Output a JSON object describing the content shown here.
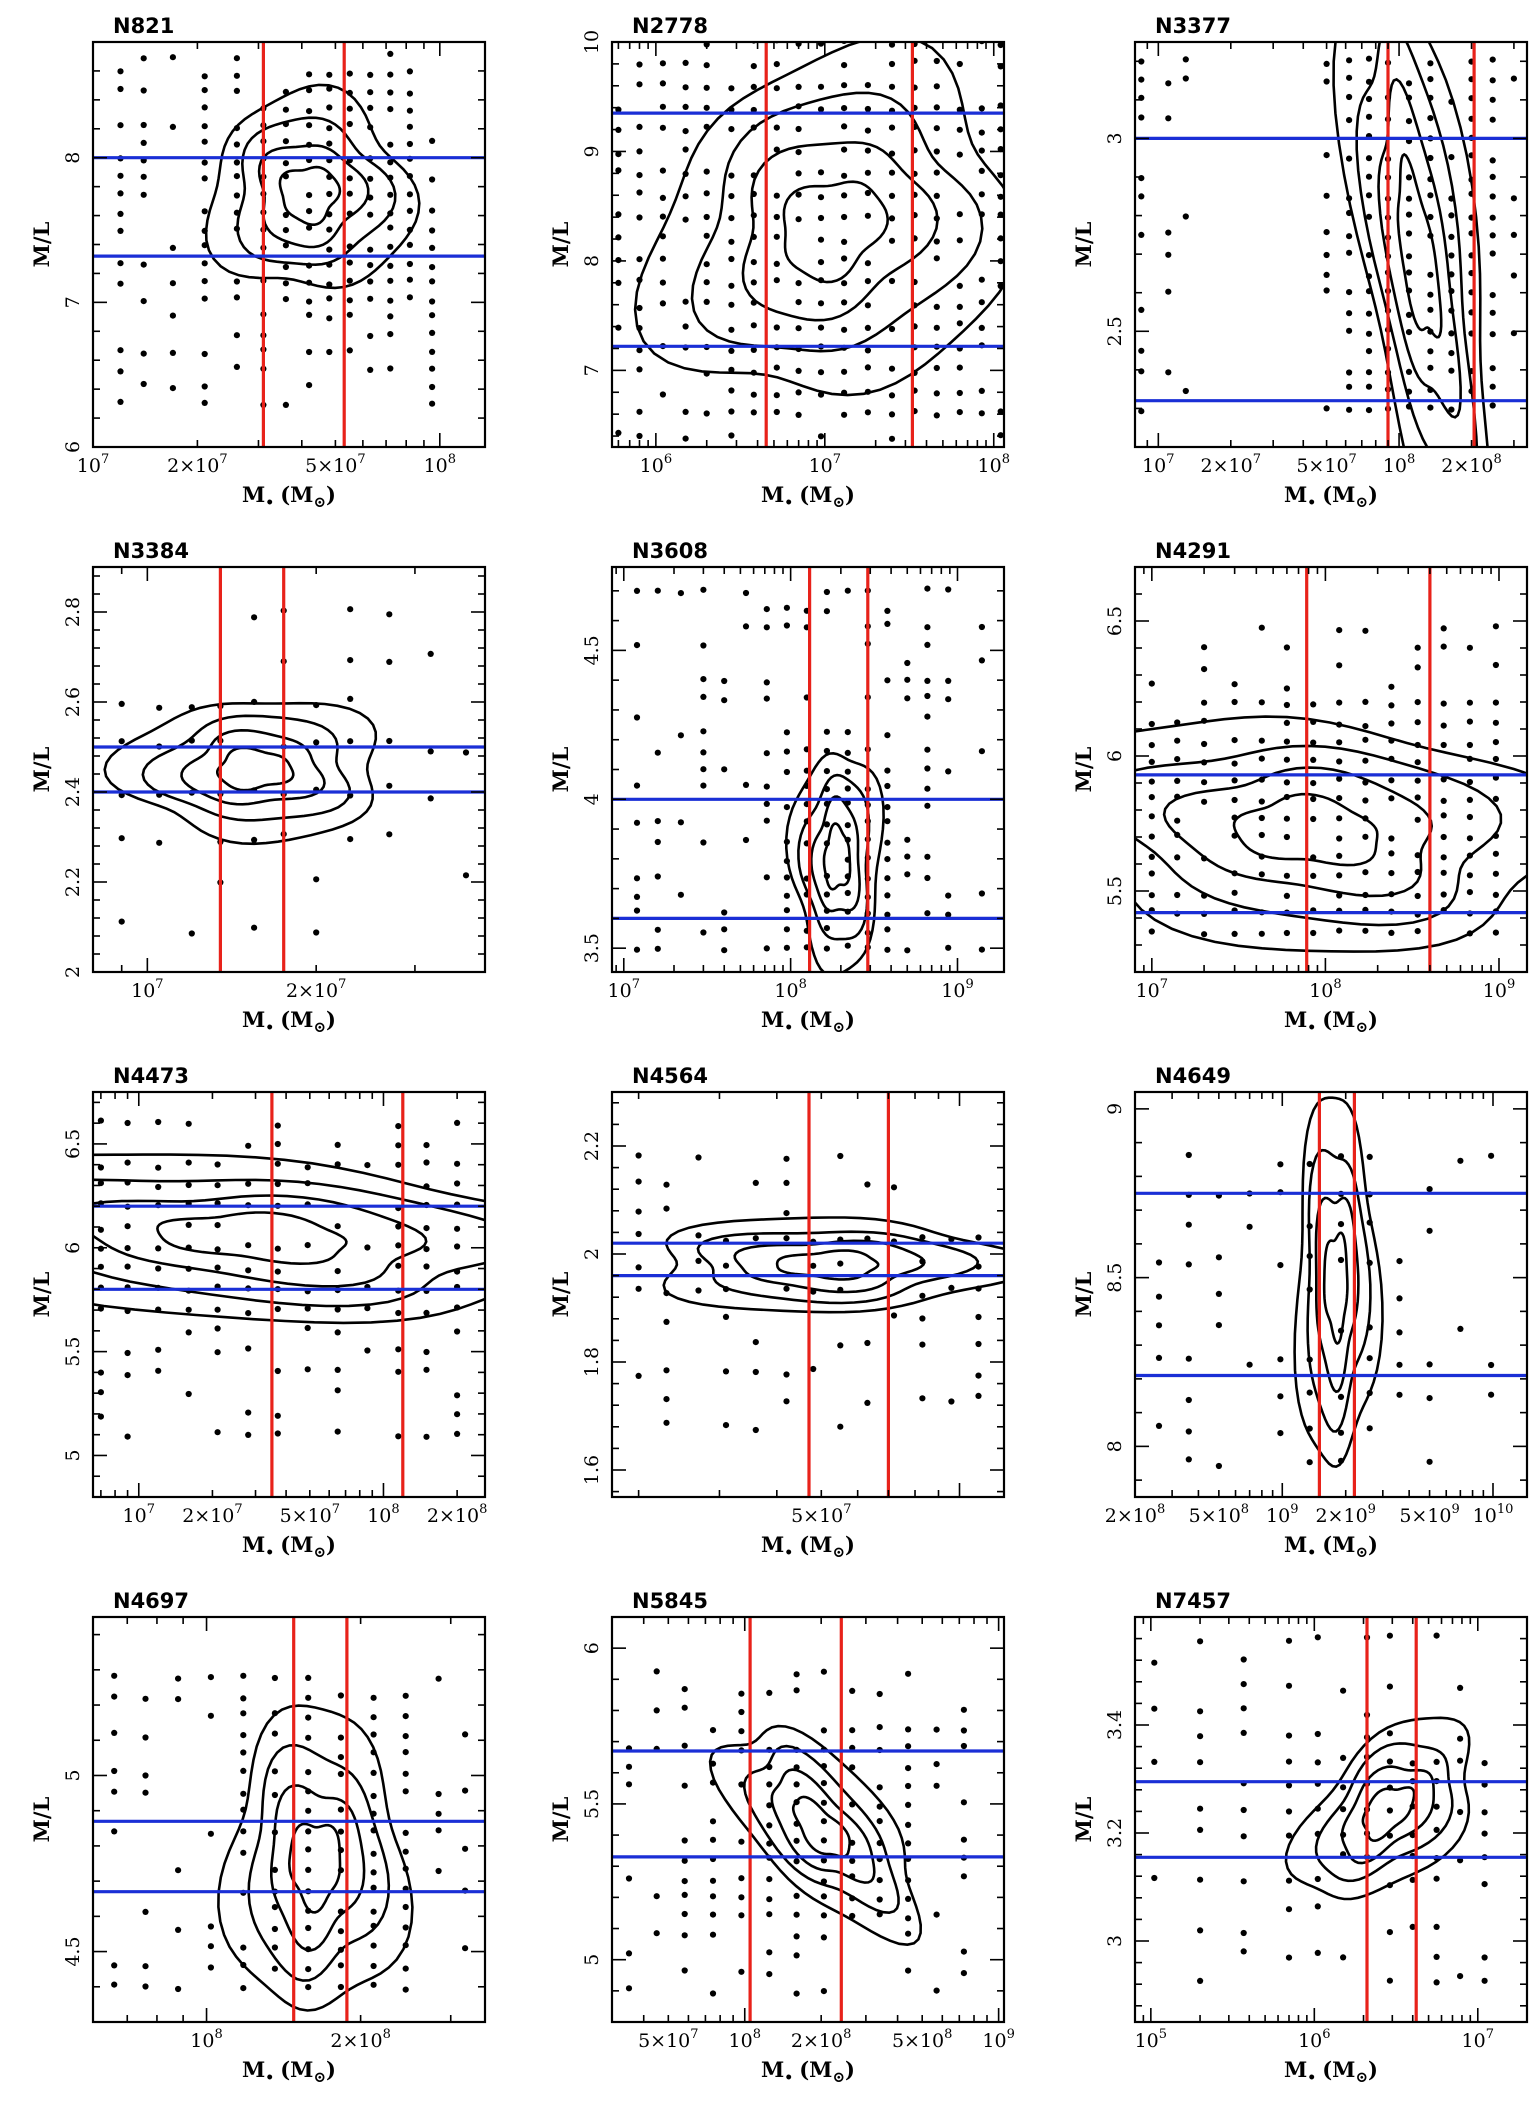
{
  "figure": {
    "ylabel": "M/L",
    "xlabel_main": "M",
    "xlabel_sub": "•",
    "xlabel_unit_open": "(M",
    "xlabel_unit_sun": "⊙",
    "xlabel_unit_close": ")"
  },
  "colors": {
    "vline": "#e8221a",
    "hline": "#1a2fd6",
    "contour": "#000000",
    "dots": "#000000"
  },
  "chart_data": [
    {
      "name": "N821",
      "type": "scatter",
      "xscale": "log",
      "xlim": [
        10000000.0,
        135000000.0
      ],
      "ylim": [
        6.0,
        8.8
      ],
      "xticks": [
        {
          "v": 10000000.0,
          "m": "10",
          "e": "7"
        },
        {
          "v": 20000000.0,
          "m": "2×10",
          "e": "7"
        },
        {
          "v": 50000000.0,
          "m": "5×10",
          "e": "7"
        },
        {
          "v": 100000000.0,
          "m": "10",
          "e": "8"
        }
      ],
      "yticks": [
        {
          "v": 6,
          "t": "6"
        },
        {
          "v": 7,
          "t": "7"
        },
        {
          "v": 8,
          "t": "8"
        }
      ],
      "vlines": [
        31000000.0,
        53000000.0
      ],
      "hlines": [
        8.0,
        7.32
      ],
      "center": [
        42000000.0,
        7.75
      ],
      "sx": 0.15,
      "sy": 0.35,
      "tilt": 0,
      "grid": {
        "xs": [
          12000000.0,
          14000000.0,
          17000000.0,
          21000000.0,
          26000000.0,
          31000000.0,
          36000000.0,
          42000000.0,
          48000000.0,
          55000000.0,
          63000000.0,
          72000000.0,
          82000000.0,
          95000000.0
        ],
        "ymin": 6.3,
        "ymax": 8.8,
        "dy": 0.12
      }
    },
    {
      "name": "N2778",
      "type": "scatter",
      "xscale": "log",
      "xlim": [
        550000.0,
        115000000.0
      ],
      "ylim": [
        6.3,
        10.0
      ],
      "xticks": [
        {
          "v": 1000000.0,
          "m": "10",
          "e": "6"
        },
        {
          "v": 10000000.0,
          "m": "10",
          "e": "7"
        },
        {
          "v": 100000000.0,
          "m": "10",
          "e": "8"
        }
      ],
      "yticks": [
        {
          "v": 7,
          "t": "7"
        },
        {
          "v": 8,
          "t": "8"
        },
        {
          "v": 9,
          "t": "9"
        },
        {
          "v": 10,
          "t": "10"
        }
      ],
      "vlines": [
        4500000.0,
        33000000.0
      ],
      "hlines": [
        9.35,
        7.22
      ],
      "center": [
        11000000.0,
        8.3
      ],
      "sx": 0.55,
      "sy": 0.8,
      "tilt": 0.25,
      "grid": {
        "xs": [
          600000.0,
          800000.0,
          1100000.0,
          1500000.0,
          2000000.0,
          2800000.0,
          3800000.0,
          5200000.0,
          7000000.0,
          9500000.0,
          13000000.0,
          18000000.0,
          25000000.0,
          34000000.0,
          46000000.0,
          63000000.0,
          85000000.0,
          110000000.0
        ],
        "ymin": 6.4,
        "ymax": 10.0,
        "dy": 0.2
      }
    },
    {
      "name": "N3377",
      "type": "scatter",
      "xscale": "log",
      "xlim": [
        8000000.0,
        340000000.0
      ],
      "ylim": [
        2.2,
        3.25
      ],
      "xticks": [
        {
          "v": 10000000.0,
          "m": "10",
          "e": "7"
        },
        {
          "v": 20000000.0,
          "m": "2×10",
          "e": "7"
        },
        {
          "v": 50000000.0,
          "m": "5×10",
          "e": "7"
        },
        {
          "v": 100000000.0,
          "m": "10",
          "e": "8"
        },
        {
          "v": 200000000.0,
          "m": "2×10",
          "e": "8"
        }
      ],
      "yticks": [
        {
          "v": 2.5,
          "t": "2.5"
        },
        {
          "v": 3,
          "t": "3"
        }
      ],
      "vlines": [
        90000000.0,
        205000000.0
      ],
      "hlines": [
        3.0,
        2.32
      ],
      "center": [
        120000000.0,
        2.7
      ],
      "sx": 0.16,
      "sy": 0.32,
      "tilt": -1.6,
      "grid": {
        "xs": [
          8500000.0,
          11000000.0,
          13000000.0,
          50000000.0,
          62000000.0,
          75000000.0,
          90000000.0,
          110000000.0,
          135000000.0,
          165000000.0,
          200000000.0,
          245000000.0,
          300000000.0
        ],
        "ymin": 2.3,
        "ymax": 3.2,
        "dy": 0.05
      }
    },
    {
      "name": "N3384",
      "type": "scatter",
      "xscale": "log",
      "xlim": [
        8000000.0,
        40000000.0
      ],
      "ylim": [
        2.0,
        2.9
      ],
      "xticks": [
        {
          "v": 10000000.0,
          "m": "10",
          "e": "7"
        },
        {
          "v": 20000000.0,
          "m": "2×10",
          "e": "7"
        }
      ],
      "yticks": [
        {
          "v": 2,
          "t": "2"
        },
        {
          "v": 2.2,
          "t": "2.2"
        },
        {
          "v": 2.4,
          "t": "2.4"
        },
        {
          "v": 2.6,
          "t": "2.6"
        },
        {
          "v": 2.8,
          "t": "2.8"
        }
      ],
      "vlines": [
        13500000.0,
        17500000.0
      ],
      "hlines": [
        2.5,
        2.4
      ],
      "center": [
        15500000.0,
        2.45
      ],
      "sx": 0.12,
      "sy": 0.08,
      "tilt": 0,
      "grid": {
        "xs": [
          9000000.0,
          10500000.0,
          12000000.0,
          13500000.0,
          15500000.0,
          17500000.0,
          20000000.0,
          23000000.0,
          27000000.0,
          32000000.0,
          37000000.0
        ],
        "ymin": 2.1,
        "ymax": 2.8,
        "dy": 0.1
      }
    },
    {
      "name": "N3608",
      "type": "scatter",
      "xscale": "log",
      "xlim": [
        8500000.0,
        1900000000.0
      ],
      "ylim": [
        3.42,
        4.78
      ],
      "xticks": [
        {
          "v": 10000000.0,
          "m": "10",
          "e": "7"
        },
        {
          "v": 100000000.0,
          "m": "10",
          "e": "8"
        },
        {
          "v": 1000000000.0,
          "m": "10",
          "e": "9"
        }
      ],
      "yticks": [
        {
          "v": 3.5,
          "t": "3.5"
        },
        {
          "v": 4,
          "t": "4"
        },
        {
          "v": 4.5,
          "t": "4.5"
        }
      ],
      "vlines": [
        130000000.0,
        290000000.0
      ],
      "hlines": [
        4.0,
        3.6
      ],
      "center": [
        190000000.0,
        3.8
      ],
      "sx": 0.14,
      "sy": 0.19,
      "tilt": 0,
      "grid": {
        "xs": [
          12000000.0,
          16000000.0,
          22000000.0,
          30000000.0,
          40000000.0,
          54000000.0,
          72000000.0,
          95000000.0,
          125000000.0,
          165000000.0,
          220000000.0,
          290000000.0,
          380000000.0,
          500000000.0,
          660000000.0,
          880000000.0,
          1400000000.0
        ],
        "ymin": 3.5,
        "ymax": 4.7,
        "dy": 0.06
      }
    },
    {
      "name": "N4291",
      "type": "scatter",
      "xscale": "log",
      "xlim": [
        8000000.0,
        1450000000.0
      ],
      "ylim": [
        5.2,
        6.7
      ],
      "xticks": [
        {
          "v": 10000000.0,
          "m": "10",
          "e": "7"
        },
        {
          "v": 100000000.0,
          "m": "10",
          "e": "8"
        },
        {
          "v": 1000000000.0,
          "m": "10",
          "e": "9"
        }
      ],
      "yticks": [
        {
          "v": 5.5,
          "t": "5.5"
        },
        {
          "v": 6,
          "t": "6"
        },
        {
          "v": 6.5,
          "t": "6.5"
        }
      ],
      "vlines": [
        78000000.0,
        400000000.0
      ],
      "hlines": [
        5.93,
        5.42
      ],
      "center": [
        80000000.0,
        5.72
      ],
      "sx": 0.75,
      "sy": 0.22,
      "tilt": -0.05,
      "grid": {
        "xs": [
          10000000.0,
          14000000.0,
          20000000.0,
          30000000.0,
          43000000.0,
          60000000.0,
          85000000.0,
          120000000.0,
          170000000.0,
          240000000.0,
          340000000.0,
          480000000.0,
          680000000.0,
          960000000.0
        ],
        "ymin": 5.35,
        "ymax": 6.5,
        "dy": 0.07
      }
    },
    {
      "name": "N4473",
      "type": "scatter",
      "xscale": "log",
      "xlim": [
        6500000.0,
        260000000.0
      ],
      "ylim": [
        4.8,
        6.75
      ],
      "xticks": [
        {
          "v": 10000000.0,
          "m": "10",
          "e": "7"
        },
        {
          "v": 20000000.0,
          "m": "2×10",
          "e": "7"
        },
        {
          "v": 50000000.0,
          "m": "5×10",
          "e": "7"
        },
        {
          "v": 100000000.0,
          "m": "10",
          "e": "8"
        },
        {
          "v": 200000000.0,
          "m": "2×10",
          "e": "8"
        }
      ],
      "yticks": [
        {
          "v": 5,
          "t": "5"
        },
        {
          "v": 5.5,
          "t": "5.5"
        },
        {
          "v": 6,
          "t": "6"
        },
        {
          "v": 6.5,
          "t": "6.5"
        }
      ],
      "vlines": [
        35000000.0,
        120000000.0
      ],
      "hlines": [
        6.2,
        5.8
      ],
      "center": [
        30000000.0,
        6.05
      ],
      "sx": 0.7,
      "sy": 0.2,
      "tilt": -0.08,
      "grid": {
        "xs": [
          7000000.0,
          9000000.0,
          12000000.0,
          16000000.0,
          21000000.0,
          28000000.0,
          37000000.0,
          49000000.0,
          65000000.0,
          86000000.0,
          115000000.0,
          150000000.0,
          200000000.0
        ],
        "ymin": 5.1,
        "ymax": 6.65,
        "dy": 0.1
      }
    },
    {
      "name": "N4564",
      "type": "scatter",
      "xscale": "log",
      "xlim": [
        17500000.0,
        125000000.0
      ],
      "ylim": [
        1.55,
        2.3
      ],
      "xticks": [
        {
          "v": 50000000.0,
          "m": "5×10",
          "e": "7"
        }
      ],
      "yticks": [
        {
          "v": 1.6,
          "t": "1.6"
        },
        {
          "v": 1.8,
          "t": "1.8"
        },
        {
          "v": 2,
          "t": "2"
        },
        {
          "v": 2.2,
          "t": "2.2"
        }
      ],
      "vlines": [
        47000000.0,
        70000000.0
      ],
      "hlines": [
        2.02,
        1.96
      ],
      "center": [
        52000000.0,
        1.98
      ],
      "sx": 0.2,
      "sy": 0.045,
      "tilt": 0,
      "grid": {
        "xs": [
          20000000.0,
          23000000.0,
          27000000.0,
          31000000.0,
          36000000.0,
          42000000.0,
          48000000.0,
          55000000.0,
          63000000.0,
          72000000.0,
          83000000.0,
          96000000.0,
          110000000.0
        ],
        "ymin": 1.68,
        "ymax": 2.2,
        "dy": 0.05
      }
    },
    {
      "name": "N4649",
      "type": "scatter",
      "xscale": "log",
      "xlim": [
        200000000.0,
        14500000000.0
      ],
      "ylim": [
        7.85,
        9.05
      ],
      "xticks": [
        {
          "v": 200000000.0,
          "m": "2×10",
          "e": "8"
        },
        {
          "v": 500000000.0,
          "m": "5×10",
          "e": "8"
        },
        {
          "v": 1000000000.0,
          "m": "10",
          "e": "9"
        },
        {
          "v": 2000000000.0,
          "m": "2×10",
          "e": "9"
        },
        {
          "v": 5000000000.0,
          "m": "5×10",
          "e": "9"
        },
        {
          "v": 10000000000.0,
          "m": "10",
          "e": "10"
        }
      ],
      "yticks": [
        {
          "v": 8,
          "t": "8"
        },
        {
          "v": 8.5,
          "t": "8.5"
        },
        {
          "v": 9,
          "t": "9"
        }
      ],
      "vlines": [
        1500000000.0,
        2200000000.0
      ],
      "hlines": [
        8.75,
        8.21
      ],
      "center": [
        1800000000.0,
        8.48
      ],
      "sx": 0.1,
      "sy": 0.28,
      "tilt": 0,
      "grid": {
        "xs": [
          260000000.0,
          360000000.0,
          500000000.0,
          700000000.0,
          980000000.0,
          1350000000.0,
          1900000000.0,
          2600000000.0,
          3600000000.0,
          5000000000.0,
          7000000000.0,
          9800000000.0
        ],
        "ymin": 7.95,
        "ymax": 8.88,
        "dy": 0.1
      }
    },
    {
      "name": "N4697",
      "type": "scatter",
      "xscale": "log",
      "xlim": [
        60000000.0,
        350000000.0
      ],
      "ylim": [
        4.3,
        5.45
      ],
      "xticks": [
        {
          "v": 100000000.0,
          "m": "10",
          "e": "8"
        },
        {
          "v": 200000000.0,
          "m": "2×10",
          "e": "8"
        }
      ],
      "yticks": [
        {
          "v": 4.5,
          "t": "4.5"
        },
        {
          "v": 5,
          "t": "5"
        }
      ],
      "vlines": [
        148000000.0,
        188000000.0
      ],
      "hlines": [
        4.87,
        4.67
      ],
      "center": [
        163000000.0,
        4.75
      ],
      "sx": 0.09,
      "sy": 0.22,
      "tilt": 0,
      "grid": {
        "xs": [
          66000000.0,
          76000000.0,
          88000000.0,
          102000000.0,
          118000000.0,
          136000000.0,
          158000000.0,
          183000000.0,
          212000000.0,
          245000000.0,
          284000000.0,
          320000000.0
        ],
        "ymin": 4.4,
        "ymax": 5.3,
        "dy": 0.055
      }
    },
    {
      "name": "N5845",
      "type": "scatter",
      "xscale": "log",
      "xlim": [
        30000000.0,
        1050000000.0
      ],
      "ylim": [
        4.8,
        6.1
      ],
      "xticks": [
        {
          "v": 50000000.0,
          "m": "5×10",
          "e": "7"
        },
        {
          "v": 100000000.0,
          "m": "10",
          "e": "8"
        },
        {
          "v": 200000000.0,
          "m": "2×10",
          "e": "8"
        },
        {
          "v": 500000000.0,
          "m": "5×10",
          "e": "8"
        },
        {
          "v": 1000000000.0,
          "m": "10",
          "e": "9"
        }
      ],
      "yticks": [
        {
          "v": 5,
          "t": "5"
        },
        {
          "v": 5.5,
          "t": "5.5"
        },
        {
          "v": 6,
          "t": "6"
        }
      ],
      "vlines": [
        105000000.0,
        240000000.0
      ],
      "hlines": [
        5.67,
        5.33
      ],
      "center": [
        200000000.0,
        5.42
      ],
      "sx": 0.2,
      "sy": 0.13,
      "tilt": -0.55,
      "grid": {
        "xs": [
          35000000.0,
          45000000.0,
          58000000.0,
          75000000.0,
          97000000.0,
          125000000.0,
          160000000.0,
          205000000.0,
          265000000.0,
          340000000.0,
          440000000.0,
          570000000.0,
          730000000.0
        ],
        "ymin": 4.9,
        "ymax": 5.95,
        "dy": 0.06
      }
    },
    {
      "name": "N7457",
      "type": "scatter",
      "xscale": "log",
      "xlim": [
        80000.0,
        20000000.0
      ],
      "ylim": [
        2.85,
        3.6
      ],
      "xticks": [
        {
          "v": 100000.0,
          "m": "10",
          "e": "5"
        },
        {
          "v": 1000000.0,
          "m": "10",
          "e": "6"
        },
        {
          "v": 10000000.0,
          "m": "10",
          "e": "7"
        }
      ],
      "yticks": [
        {
          "v": 3,
          "t": "3"
        },
        {
          "v": 3.2,
          "t": "3.2"
        },
        {
          "v": 3.4,
          "t": "3.4"
        }
      ],
      "vlines": [
        2100000.0,
        4200000.0
      ],
      "hlines": [
        3.295,
        3.155
      ],
      "center": [
        2800000.0,
        3.24
      ],
      "sx": 0.28,
      "sy": 0.075,
      "tilt": 0.15,
      "grid": {
        "xs": [
          105000.0,
          200000.0,
          370000.0,
          700000.0,
          1050000.0,
          1500000.0,
          2100000.0,
          2900000.0,
          4000000.0,
          5600000.0,
          7800000.0,
          11000000.0
        ],
        "ymin": 2.93,
        "ymax": 3.58,
        "dy": 0.045
      }
    }
  ]
}
